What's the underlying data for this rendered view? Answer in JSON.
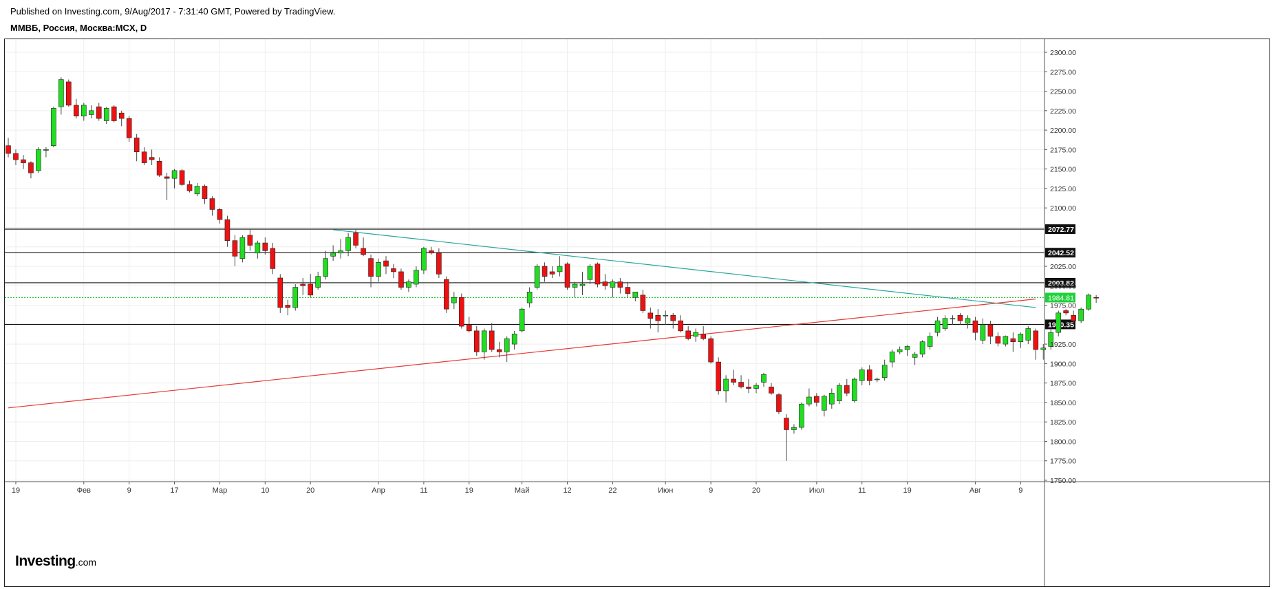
{
  "header": {
    "published": "Published on Investing.com, 9/Aug/2017 - 7:31:40 GMT, Powered by TradingView.",
    "symbol": "ММВБ, Россия, Москва:MCX, D"
  },
  "logo": {
    "main": "Investing",
    "suffix": ".com"
  },
  "chart_data": {
    "type": "candlestick",
    "title": "ММВБ, Россия, Москва:MCX, D",
    "ylim": [
      1740,
      2315
    ],
    "y_ticks": [
      "2300.00",
      "2275.00",
      "2250.00",
      "2225.00",
      "2200.00",
      "2175.00",
      "2150.00",
      "2125.00",
      "2100.00",
      "2025.00",
      "2000.00",
      "1975.00",
      "1925.00",
      "1900.00",
      "1875.00",
      "1850.00",
      "1825.00",
      "1800.00",
      "1775.00",
      "1750.00"
    ],
    "x_labels": [
      {
        "label": "19",
        "index": 1
      },
      {
        "label": "Фев",
        "index": 10
      },
      {
        "label": "9",
        "index": 16
      },
      {
        "label": "17",
        "index": 22
      },
      {
        "label": "Мар",
        "index": 28
      },
      {
        "label": "10",
        "index": 34
      },
      {
        "label": "20",
        "index": 40
      },
      {
        "label": "Апр",
        "index": 49
      },
      {
        "label": "11",
        "index": 55
      },
      {
        "label": "19",
        "index": 61
      },
      {
        "label": "Май",
        "index": 68
      },
      {
        "label": "12",
        "index": 74
      },
      {
        "label": "22",
        "index": 80
      },
      {
        "label": "Июн",
        "index": 87
      },
      {
        "label": "9",
        "index": 93
      },
      {
        "label": "20",
        "index": 99
      },
      {
        "label": "Июл",
        "index": 107
      },
      {
        "label": "11",
        "index": 113
      },
      {
        "label": "19",
        "index": 119
      },
      {
        "label": "Авг",
        "index": 128
      },
      {
        "label": "9",
        "index": 134
      }
    ],
    "horizontal_levels": [
      {
        "value": 2072.77,
        "label": "2072.77"
      },
      {
        "value": 2042.52,
        "label": "2042.52"
      },
      {
        "value": 2003.82,
        "label": "2003.82"
      },
      {
        "value": 1950.35,
        "label": "1950.35"
      }
    ],
    "last_price": {
      "value": 1984.81,
      "label": "1984.81"
    },
    "trendlines": [
      {
        "color": "#26a69a",
        "from": {
          "index": 43,
          "value": 2072
        },
        "to": {
          "index": 136,
          "value": 1972
        }
      },
      {
        "color": "#e53935",
        "from": {
          "index": 0,
          "value": 1843
        },
        "to": {
          "index": 136,
          "value": 1983
        }
      }
    ],
    "candles": [
      [
        2180,
        2190,
        2165,
        2170
      ],
      [
        2170,
        2175,
        2155,
        2162
      ],
      [
        2162,
        2168,
        2150,
        2158
      ],
      [
        2158,
        2160,
        2138,
        2145
      ],
      [
        2148,
        2178,
        2145,
        2175
      ],
      [
        2174,
        2178,
        2165,
        2175
      ],
      [
        2180,
        2230,
        2178,
        2228
      ],
      [
        2230,
        2268,
        2220,
        2265
      ],
      [
        2262,
        2265,
        2230,
        2232
      ],
      [
        2232,
        2240,
        2215,
        2218
      ],
      [
        2218,
        2235,
        2212,
        2232
      ],
      [
        2220,
        2232,
        2215,
        2225
      ],
      [
        2230,
        2235,
        2212,
        2215
      ],
      [
        2212,
        2230,
        2208,
        2228
      ],
      [
        2230,
        2232,
        2210,
        2212
      ],
      [
        2222,
        2225,
        2205,
        2215
      ],
      [
        2215,
        2218,
        2185,
        2190
      ],
      [
        2190,
        2195,
        2160,
        2172
      ],
      [
        2172,
        2178,
        2155,
        2158
      ],
      [
        2165,
        2175,
        2155,
        2162
      ],
      [
        2160,
        2165,
        2140,
        2142
      ],
      [
        2140,
        2145,
        2110,
        2138
      ],
      [
        2138,
        2150,
        2125,
        2148
      ],
      [
        2148,
        2150,
        2128,
        2130
      ],
      [
        2130,
        2135,
        2120,
        2122
      ],
      [
        2118,
        2132,
        2115,
        2128
      ],
      [
        2128,
        2130,
        2105,
        2112
      ],
      [
        2112,
        2115,
        2090,
        2098
      ],
      [
        2098,
        2100,
        2080,
        2085
      ],
      [
        2085,
        2090,
        2050,
        2058
      ],
      [
        2058,
        2065,
        2025,
        2038
      ],
      [
        2035,
        2065,
        2030,
        2062
      ],
      [
        2065,
        2072,
        2045,
        2052
      ],
      [
        2042,
        2058,
        2035,
        2055
      ],
      [
        2055,
        2062,
        2040,
        2045
      ],
      [
        2048,
        2055,
        2015,
        2022
      ],
      [
        2010,
        2015,
        1965,
        1972
      ],
      [
        1975,
        1982,
        1962,
        1972
      ],
      [
        1972,
        2002,
        1968,
        1998
      ],
      [
        2002,
        2010,
        1988,
        2000
      ],
      [
        2002,
        2015,
        1985,
        1988
      ],
      [
        1998,
        2018,
        1995,
        2012
      ],
      [
        2012,
        2045,
        2008,
        2035
      ],
      [
        2038,
        2052,
        2032,
        2042
      ],
      [
        2042,
        2060,
        2035,
        2045
      ],
      [
        2045,
        2068,
        2038,
        2062
      ],
      [
        2068,
        2072,
        2048,
        2052
      ],
      [
        2048,
        2062,
        2038,
        2040
      ],
      [
        2035,
        2040,
        1998,
        2012
      ],
      [
        2012,
        2035,
        2005,
        2030
      ],
      [
        2032,
        2038,
        2015,
        2025
      ],
      [
        2022,
        2028,
        2010,
        2018
      ],
      [
        2018,
        2022,
        1995,
        1998
      ],
      [
        1998,
        2008,
        1992,
        2005
      ],
      [
        2002,
        2025,
        1998,
        2020
      ],
      [
        2020,
        2050,
        2015,
        2048
      ],
      [
        2045,
        2050,
        2040,
        2042
      ],
      [
        2042,
        2048,
        2010,
        2015
      ],
      [
        2008,
        2012,
        1965,
        1970
      ],
      [
        1978,
        1992,
        1970,
        1985
      ],
      [
        1985,
        1990,
        1945,
        1948
      ],
      [
        1950,
        1960,
        1940,
        1942
      ],
      [
        1942,
        1948,
        1910,
        1915
      ],
      [
        1915,
        1945,
        1905,
        1942
      ],
      [
        1942,
        1952,
        1915,
        1918
      ],
      [
        1918,
        1928,
        1908,
        1915
      ],
      [
        1915,
        1935,
        1902,
        1932
      ],
      [
        1925,
        1942,
        1918,
        1938
      ],
      [
        1942,
        1972,
        1940,
        1970
      ],
      [
        1978,
        1998,
        1972,
        1992
      ],
      [
        1998,
        2028,
        1995,
        2025
      ],
      [
        2025,
        2030,
        2005,
        2012
      ],
      [
        2018,
        2025,
        2010,
        2015
      ],
      [
        2018,
        2038,
        2012,
        2025
      ],
      [
        2028,
        2030,
        1995,
        1998
      ],
      [
        1998,
        2005,
        1985,
        2002
      ],
      [
        2000,
        2018,
        1988,
        2002
      ],
      [
        2008,
        2028,
        2002,
        2025
      ],
      [
        2028,
        2030,
        1998,
        2002
      ],
      [
        2005,
        2015,
        1995,
        2000
      ],
      [
        1998,
        2008,
        1985,
        2005
      ],
      [
        2005,
        2010,
        1990,
        1998
      ],
      [
        1998,
        2005,
        1985,
        1990
      ],
      [
        1985,
        1992,
        1980,
        1992
      ],
      [
        1988,
        1995,
        1965,
        1968
      ],
      [
        1965,
        1972,
        1945,
        1958
      ],
      [
        1962,
        1970,
        1940,
        1955
      ],
      [
        1962,
        1968,
        1950,
        1962
      ],
      [
        1962,
        1965,
        1945,
        1955
      ],
      [
        1955,
        1962,
        1940,
        1942
      ],
      [
        1942,
        1948,
        1930,
        1932
      ],
      [
        1935,
        1945,
        1928,
        1940
      ],
      [
        1938,
        1948,
        1930,
        1932
      ],
      [
        1932,
        1935,
        1900,
        1902
      ],
      [
        1902,
        1908,
        1860,
        1865
      ],
      [
        1865,
        1885,
        1850,
        1880
      ],
      [
        1880,
        1892,
        1872,
        1876
      ],
      [
        1876,
        1885,
        1868,
        1870
      ],
      [
        1870,
        1880,
        1862,
        1868
      ],
      [
        1868,
        1875,
        1862,
        1872
      ],
      [
        1876,
        1888,
        1870,
        1886
      ],
      [
        1870,
        1875,
        1860,
        1862
      ],
      [
        1860,
        1862,
        1835,
        1838
      ],
      [
        1830,
        1835,
        1775,
        1815
      ],
      [
        1815,
        1822,
        1810,
        1818
      ],
      [
        1818,
        1850,
        1815,
        1848
      ],
      [
        1848,
        1868,
        1845,
        1857
      ],
      [
        1858,
        1862,
        1845,
        1850
      ],
      [
        1840,
        1860,
        1832,
        1858
      ],
      [
        1848,
        1868,
        1842,
        1862
      ],
      [
        1852,
        1875,
        1848,
        1872
      ],
      [
        1872,
        1880,
        1858,
        1862
      ],
      [
        1852,
        1882,
        1850,
        1880
      ],
      [
        1878,
        1895,
        1872,
        1892
      ],
      [
        1892,
        1898,
        1872,
        1878
      ],
      [
        1880,
        1882,
        1876,
        1880
      ],
      [
        1882,
        1905,
        1878,
        1898
      ],
      [
        1902,
        1918,
        1895,
        1915
      ],
      [
        1915,
        1922,
        1912,
        1918
      ],
      [
        1918,
        1924,
        1910,
        1922
      ],
      [
        1908,
        1915,
        1898,
        1912
      ],
      [
        1912,
        1930,
        1908,
        1928
      ],
      [
        1922,
        1940,
        1918,
        1935
      ],
      [
        1940,
        1960,
        1935,
        1955
      ],
      [
        1945,
        1962,
        1942,
        1958
      ],
      [
        1958,
        1962,
        1950,
        1958
      ],
      [
        1962,
        1965,
        1950,
        1955
      ],
      [
        1952,
        1962,
        1945,
        1958
      ],
      [
        1955,
        1960,
        1930,
        1940
      ],
      [
        1930,
        1958,
        1925,
        1950
      ],
      [
        1950,
        1955,
        1925,
        1935
      ],
      [
        1935,
        1940,
        1922,
        1926
      ],
      [
        1925,
        1936,
        1922,
        1935
      ],
      [
        1932,
        1940,
        1915,
        1928
      ],
      [
        1928,
        1940,
        1920,
        1938
      ],
      [
        1930,
        1948,
        1925,
        1945
      ],
      [
        1942,
        1945,
        1905,
        1918
      ],
      [
        1918,
        1925,
        1905,
        1920
      ],
      [
        1922,
        1945,
        1918,
        1940
      ],
      [
        1940,
        1968,
        1935,
        1965
      ],
      [
        1968,
        1970,
        1962,
        1965
      ],
      [
        1962,
        1968,
        1952,
        1955
      ],
      [
        1955,
        1972,
        1952,
        1970
      ],
      [
        1970,
        1990,
        1968,
        1988
      ],
      [
        1985,
        1988,
        1978,
        1984.81
      ]
    ]
  }
}
